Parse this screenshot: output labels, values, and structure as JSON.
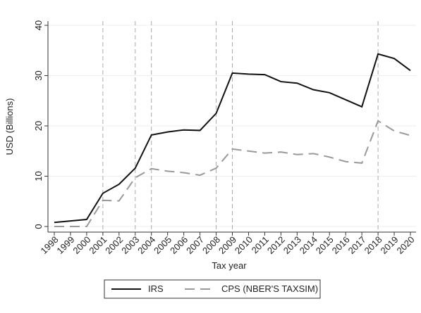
{
  "chart_data": {
    "type": "line",
    "x_label": "Tax year",
    "y_label": "USD (Billions)",
    "x": [
      1998,
      1999,
      2000,
      2001,
      2002,
      2003,
      2004,
      2005,
      2006,
      2007,
      2008,
      2009,
      2010,
      2011,
      2012,
      2013,
      2014,
      2015,
      2016,
      2017,
      2018,
      2019,
      2020
    ],
    "series": [
      {
        "name": "IRS",
        "color": "#111111",
        "dash": "solid",
        "values": [
          0.8,
          1.1,
          1.4,
          6.6,
          8.4,
          11.6,
          18.2,
          18.8,
          19.2,
          19.1,
          22.5,
          30.5,
          30.3,
          30.2,
          28.8,
          28.5,
          27.2,
          26.6,
          25.2,
          23.8,
          34.3,
          33.4,
          31.0
        ]
      },
      {
        "name": "CPS (NBER'S TAXSIM)",
        "color": "#999999",
        "dash": "dashed",
        "values": [
          0,
          0,
          0,
          5.2,
          5.1,
          9.7,
          11.5,
          11.0,
          10.7,
          10.2,
          11.6,
          15.4,
          15.0,
          14.6,
          14.8,
          14.3,
          14.5,
          13.8,
          12.9,
          12.6,
          21.0,
          19.0,
          18.1
        ]
      }
    ],
    "vlines": [
      2001,
      2003,
      2004,
      2008,
      2009,
      2018
    ],
    "xlim": [
      1998,
      2020
    ],
    "xticks": [
      1998,
      1999,
      2000,
      2001,
      2002,
      2003,
      2004,
      2005,
      2006,
      2007,
      2008,
      2009,
      2010,
      2011,
      2012,
      2013,
      2014,
      2015,
      2016,
      2017,
      2018,
      2019,
      2020
    ],
    "ylim": [
      0,
      40
    ],
    "yticks": [
      0,
      10,
      20,
      30,
      40
    ],
    "grid": true,
    "legend": "bottom"
  }
}
